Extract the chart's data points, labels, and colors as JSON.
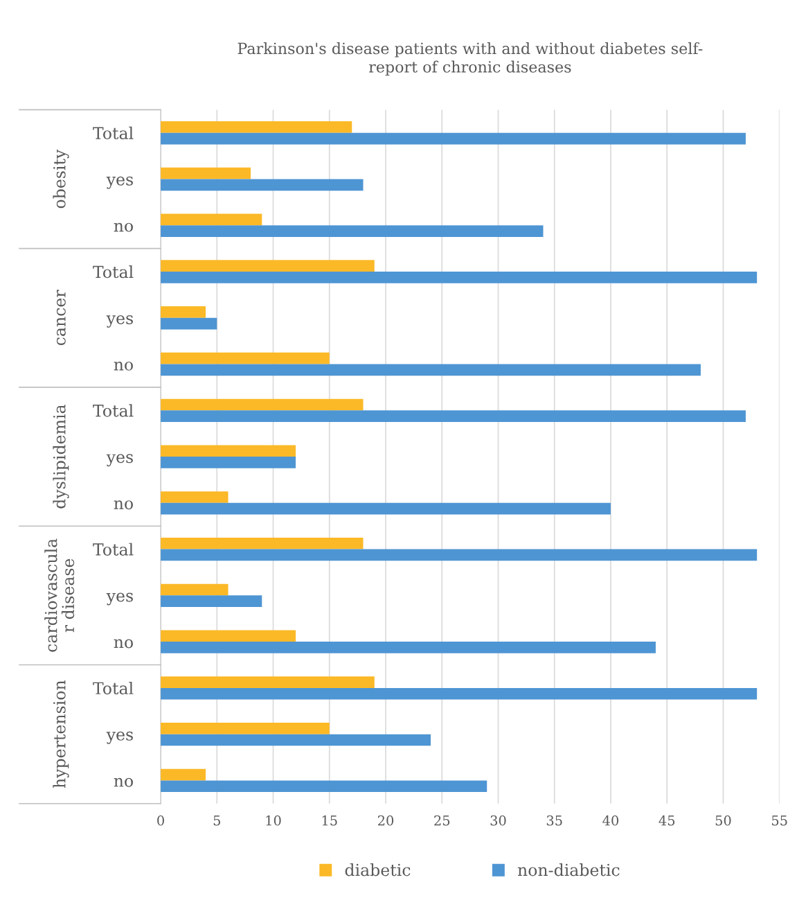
{
  "chart_data": {
    "type": "bar",
    "orientation": "horizontal",
    "title": "Parkinson's disease patients with and without diabetes self-\nreport of chronic diseases",
    "categories": [
      "Total",
      "yes",
      "no",
      "Total",
      "yes",
      "no",
      "Total",
      "yes",
      "no",
      "Total",
      "yes",
      "no",
      "Total",
      "yes",
      "no"
    ],
    "annotations": [
      "obesity",
      "cancer",
      "dyslipidemia",
      "cardiovascula\nr disease",
      "hypertension"
    ],
    "series": [
      {
        "name": "diabetic",
        "color": "#fbb927",
        "values": [
          17,
          8,
          9,
          19,
          4,
          15,
          18,
          12,
          6,
          18,
          6,
          12,
          19,
          15,
          4
        ]
      },
      {
        "name": "non-diabetic",
        "color": "#4e95d3",
        "values": [
          52,
          18,
          34,
          53,
          5,
          48,
          52,
          12,
          40,
          53,
          9,
          44,
          53,
          24,
          29
        ]
      }
    ],
    "xlim": [
      0,
      55
    ],
    "xticks": [
      0,
      5,
      10,
      15,
      20,
      25,
      30,
      35,
      40,
      45,
      50,
      55
    ],
    "grid": "x",
    "legend": "bottom"
  }
}
